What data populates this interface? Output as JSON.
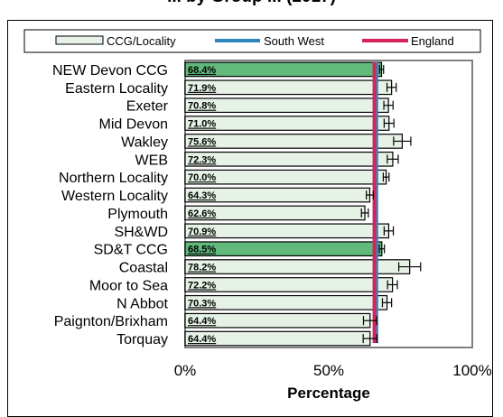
{
  "chart_data": {
    "type": "bar",
    "orientation": "horizontal",
    "title": "... by Group ... (2017)",
    "xlabel": "Percentage",
    "xlim": [
      0,
      100
    ],
    "xticks": [
      "0%",
      "50%",
      "100%"
    ],
    "categories": [
      "NEW Devon CCG",
      "Eastern Locality",
      "Exeter",
      "Mid Devon",
      "Wakley",
      "WEB",
      "Northern Locality",
      "Western Locality",
      "Plymouth",
      "SH&WD",
      "SD&T CCG",
      "Coastal",
      "Moor to Sea",
      "N Abbot",
      "Paignton/Brixham",
      "Torquay"
    ],
    "values": [
      68.4,
      71.9,
      70.8,
      71.0,
      75.6,
      72.3,
      70.0,
      64.3,
      62.6,
      70.9,
      68.5,
      78.2,
      72.2,
      70.3,
      64.4,
      64.4
    ],
    "value_labels": [
      "68.4%",
      "71.9%",
      "70.8%",
      "71.0%",
      "75.6%",
      "72.3%",
      "70.0%",
      "64.3%",
      "62.6%",
      "70.9%",
      "68.5%",
      "78.2%",
      "72.2%",
      "70.3%",
      "64.4%",
      "64.4%"
    ],
    "error_low": [
      67.7,
      70.3,
      69.2,
      69.3,
      72.6,
      70.4,
      69.0,
      63.1,
      61.4,
      69.3,
      67.6,
      74.4,
      70.5,
      68.7,
      62.1,
      62.0
    ],
    "error_high": [
      69.1,
      73.5,
      72.4,
      72.7,
      78.6,
      74.2,
      71.0,
      65.5,
      63.8,
      72.5,
      69.4,
      82.0,
      73.9,
      71.9,
      66.7,
      66.8
    ],
    "highlighted": [
      true,
      false,
      false,
      false,
      false,
      false,
      false,
      false,
      false,
      false,
      true,
      false,
      false,
      false,
      false,
      false
    ],
    "reference_lines": [
      {
        "name": "South West",
        "value": 66.6,
        "color": "#2e86c1"
      },
      {
        "name": "England",
        "value": 65.9,
        "color": "#d6245a"
      }
    ],
    "legend": {
      "position": "top",
      "items": [
        {
          "name": "CCG/Locality",
          "kind": "bar"
        },
        {
          "name": "South West",
          "kind": "line",
          "color": "#2e86c1"
        },
        {
          "name": "England",
          "kind": "line",
          "color": "#d6245a"
        }
      ]
    },
    "colors": {
      "bar": "#e6f2e6",
      "bar_highlight": "#61b97c",
      "edge": "#000000"
    },
    "grid": false
  }
}
